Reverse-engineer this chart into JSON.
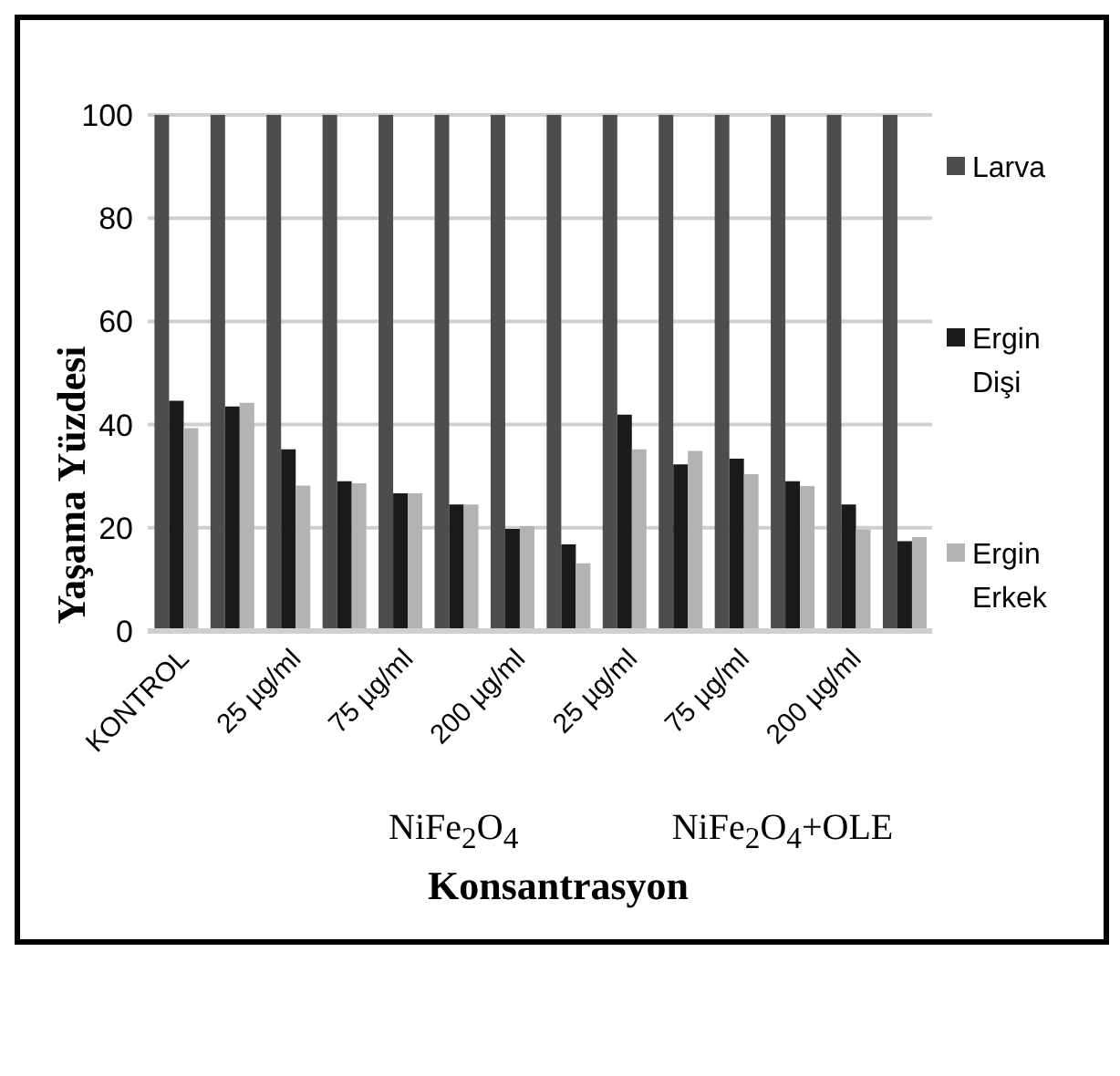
{
  "chart_data": {
    "type": "bar",
    "ylabel": "Yaşama Yüzdesi",
    "xlabel": "Konsantrasyon",
    "categories": [
      "KONTROL",
      null,
      "25 µg/ml",
      null,
      "75 µg/ml",
      null,
      "200 µg/ml",
      null,
      "25 µg/ml",
      null,
      "75 µg/ml",
      null,
      "200 µg/ml",
      null
    ],
    "series": [
      {
        "name": "Larva",
        "color": "#4d4d4d",
        "values": [
          100,
          100,
          100,
          100,
          100,
          100,
          100,
          100,
          100,
          100,
          100,
          100,
          100,
          100
        ]
      },
      {
        "name": "Ergin Dişi",
        "color": "#1a1a1a",
        "values": [
          44.6,
          43.5,
          35.2,
          29.0,
          26.7,
          24.5,
          19.8,
          16.8,
          41.9,
          32.3,
          33.4,
          29.0,
          24.5,
          17.4
        ]
      },
      {
        "name": "Ergin Erkek",
        "color": "#b3b3b3",
        "values": [
          39.3,
          44.2,
          28.2,
          28.6,
          26.7,
          24.5,
          20.3,
          13.1,
          35.2,
          34.9,
          30.4,
          28.1,
          19.7,
          18.2
        ]
      }
    ],
    "ylim": [
      0,
      100
    ],
    "yticks": [
      0,
      20,
      40,
      60,
      80,
      100
    ],
    "grid": "y",
    "legend": "right",
    "annotations": [
      "NiFe$_{2}$O$_{4}$",
      "NiFe$_{2}$O$_{4}$+OLE"
    ]
  }
}
